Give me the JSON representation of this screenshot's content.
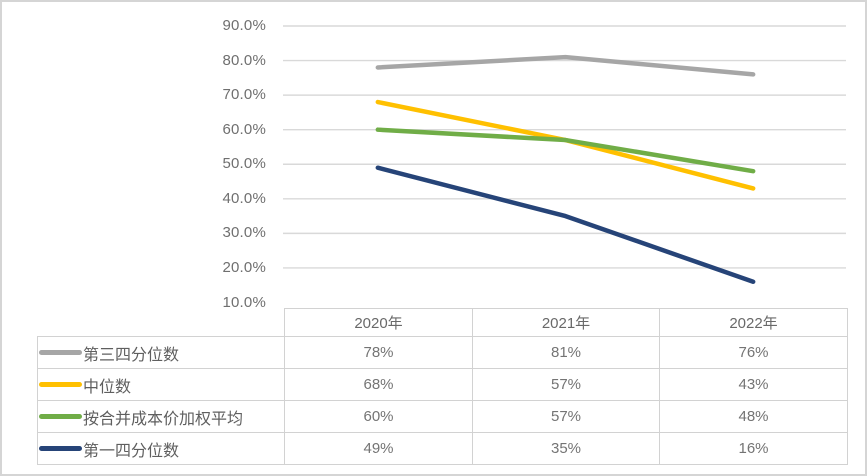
{
  "chart_data": {
    "type": "line",
    "title": "",
    "categories": [
      "2020年",
      "2021年",
      "2022年"
    ],
    "series": [
      {
        "key": "third-quartile",
        "name": "第三四分位数",
        "color": "#a6a6a6",
        "values": [
          78,
          81,
          76
        ],
        "display": [
          "78%",
          "81%",
          "76%"
        ]
      },
      {
        "key": "median",
        "name": "中位数",
        "color": "#ffc000",
        "values": [
          68,
          57,
          43
        ],
        "display": [
          "68%",
          "57%",
          "43%"
        ]
      },
      {
        "key": "weighted-avg-by-merged-cost",
        "name": "按合并成本价加权平均",
        "color": "#70ad47",
        "values": [
          60,
          57,
          48
        ],
        "display": [
          "60%",
          "57%",
          "48%"
        ]
      },
      {
        "key": "first-quartile",
        "name": "第一四分位数",
        "color": "#264478",
        "values": [
          49,
          35,
          16
        ],
        "display": [
          "49%",
          "35%",
          "16%"
        ]
      }
    ],
    "y_axis": {
      "min": 10,
      "max": 90,
      "step": 10,
      "tick_labels": [
        "90.0%",
        "80.0%",
        "70.0%",
        "60.0%",
        "50.0%",
        "40.0%",
        "30.0%",
        "20.0%",
        "10.0%"
      ]
    },
    "grid": true,
    "legend_position": "data-table-left-column"
  },
  "colors": {
    "gridline": "#d9d9d9",
    "table_border": "#d2d2d2",
    "frame_border": "#d5d5d5",
    "axis_text": "#6f6f6f",
    "background": "#ffffff"
  }
}
